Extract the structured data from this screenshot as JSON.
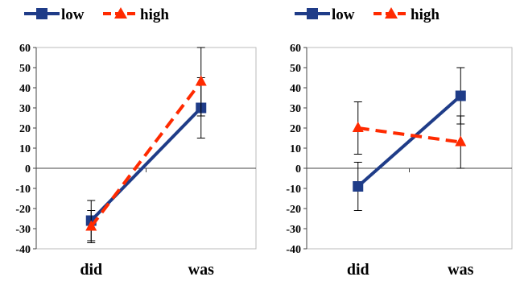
{
  "legend": {
    "low_label": "low",
    "high_label": "high"
  },
  "colors": {
    "low": "#1f3c88",
    "high": "#ff2a00",
    "axis": "#444444",
    "grid": "#bbbbbb",
    "errorbar": "#000000"
  },
  "chart_data": [
    {
      "type": "line",
      "categories": [
        "did",
        "was"
      ],
      "ylim": [
        -40,
        60
      ],
      "ytick_step": 10,
      "ytick_labels": [
        "-40",
        "-30",
        "-20",
        "-10",
        "0",
        "10",
        "20",
        "30",
        "40",
        "50",
        "60"
      ],
      "series": [
        {
          "name": "low",
          "values": [
            -26,
            30
          ],
          "errors": [
            10,
            15
          ],
          "marker": "square",
          "line": "solid",
          "color": "#1f3c88"
        },
        {
          "name": "high",
          "values": [
            -29,
            43
          ],
          "errors": [
            8,
            17
          ],
          "marker": "triangle",
          "line": "dashed",
          "color": "#ff2a00"
        }
      ],
      "legend_position": "top",
      "grid": false
    },
    {
      "type": "line",
      "categories": [
        "did",
        "was"
      ],
      "ylim": [
        -40,
        60
      ],
      "ytick_step": 10,
      "ytick_labels": [
        "-40",
        "-30",
        "-20",
        "-10",
        "0",
        "10",
        "20",
        "30",
        "40",
        "50",
        "60"
      ],
      "series": [
        {
          "name": "low",
          "values": [
            -9,
            36
          ],
          "errors": [
            12,
            14
          ],
          "marker": "square",
          "line": "solid",
          "color": "#1f3c88"
        },
        {
          "name": "high",
          "values": [
            20,
            13
          ],
          "errors": [
            13,
            13
          ],
          "marker": "triangle",
          "line": "dashed",
          "color": "#ff2a00"
        }
      ],
      "legend_position": "top",
      "grid": false
    }
  ]
}
